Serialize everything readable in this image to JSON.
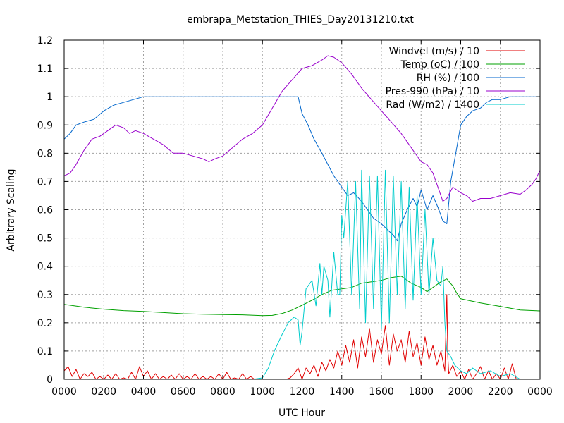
{
  "chart_data": {
    "type": "line",
    "title": "embrapa_Metstation_THIES_Day20131210.txt",
    "xlabel": "UTC Hour",
    "ylabel": "Arbitrary Scaling",
    "xlim": [
      0,
      24
    ],
    "ylim": [
      0,
      1.2
    ],
    "grid": true,
    "legend_position": "top-right",
    "xticks": [
      {
        "value": 0,
        "label": "0000"
      },
      {
        "value": 2,
        "label": "0200"
      },
      {
        "value": 4,
        "label": "0400"
      },
      {
        "value": 6,
        "label": "0600"
      },
      {
        "value": 8,
        "label": "0800"
      },
      {
        "value": 10,
        "label": "1000"
      },
      {
        "value": 12,
        "label": "1200"
      },
      {
        "value": 14,
        "label": "1400"
      },
      {
        "value": 16,
        "label": "1600"
      },
      {
        "value": 18,
        "label": "1800"
      },
      {
        "value": 20,
        "label": "2000"
      },
      {
        "value": 22,
        "label": "2200"
      },
      {
        "value": 24,
        "label": "0000"
      }
    ],
    "yticks": [
      {
        "value": 0,
        "label": "0"
      },
      {
        "value": 0.1,
        "label": "0.1"
      },
      {
        "value": 0.2,
        "label": "0.2"
      },
      {
        "value": 0.3,
        "label": "0.3"
      },
      {
        "value": 0.4,
        "label": "0.4"
      },
      {
        "value": 0.5,
        "label": "0.5"
      },
      {
        "value": 0.6,
        "label": "0.6"
      },
      {
        "value": 0.7,
        "label": "0.7"
      },
      {
        "value": 0.8,
        "label": "0.8"
      },
      {
        "value": 0.9,
        "label": "0.9"
      },
      {
        "value": 1.0,
        "label": "1"
      },
      {
        "value": 1.1,
        "label": "1.1"
      },
      {
        "value": 1.2,
        "label": "1.2"
      }
    ],
    "series": [
      {
        "name": "Windvel (m/s) / 10",
        "color": "#e00000",
        "x": [
          0.0,
          0.2,
          0.4,
          0.6,
          0.8,
          1.0,
          1.2,
          1.4,
          1.6,
          1.8,
          2.0,
          2.2,
          2.4,
          2.6,
          2.8,
          3.0,
          3.2,
          3.4,
          3.6,
          3.8,
          4.0,
          4.2,
          4.4,
          4.6,
          4.8,
          5.0,
          5.2,
          5.4,
          5.6,
          5.8,
          6.0,
          6.2,
          6.4,
          6.6,
          6.8,
          7.0,
          7.2,
          7.4,
          7.6,
          7.8,
          8.0,
          8.2,
          8.4,
          8.6,
          8.8,
          9.0,
          9.2,
          9.4,
          9.6,
          9.8,
          10.0,
          10.2,
          10.4,
          10.6,
          10.8,
          11.0,
          11.2,
          11.4,
          11.6,
          11.8,
          12.0,
          12.2,
          12.4,
          12.6,
          12.8,
          13.0,
          13.2,
          13.4,
          13.6,
          13.8,
          14.0,
          14.2,
          14.4,
          14.6,
          14.8,
          15.0,
          15.2,
          15.4,
          15.6,
          15.8,
          16.0,
          16.2,
          16.4,
          16.6,
          16.8,
          17.0,
          17.2,
          17.4,
          17.6,
          17.8,
          18.0,
          18.2,
          18.4,
          18.6,
          18.8,
          19.0,
          19.2,
          19.3,
          19.35,
          19.4,
          19.6,
          19.8,
          20.0,
          20.2,
          20.4,
          20.6,
          20.8,
          21.0,
          21.2,
          21.4,
          21.6,
          21.8,
          22.0,
          22.2,
          22.4,
          22.6,
          22.8,
          23.0,
          23.2,
          23.4,
          23.6,
          23.8,
          24.0
        ],
        "y": [
          0.03,
          0.045,
          0.01,
          0.035,
          0.0,
          0.02,
          0.01,
          0.025,
          0.0,
          0.01,
          0.0,
          0.015,
          0.0,
          0.02,
          0.0,
          0.005,
          0.0,
          0.025,
          0.0,
          0.045,
          0.01,
          0.03,
          0.0,
          0.02,
          0.0,
          0.01,
          0.0,
          0.015,
          0.0,
          0.02,
          0.0,
          0.01,
          0.0,
          0.02,
          0.0,
          0.01,
          0.0,
          0.01,
          0.0,
          0.02,
          0.0,
          0.025,
          0.0,
          0.005,
          0.0,
          0.02,
          0.0,
          0.01,
          0.0,
          0.0,
          0.0,
          0.0,
          0.0,
          0.0,
          0.0,
          0.0,
          0.0,
          0.005,
          0.02,
          0.04,
          0.0,
          0.04,
          0.02,
          0.05,
          0.01,
          0.06,
          0.03,
          0.07,
          0.04,
          0.1,
          0.05,
          0.12,
          0.06,
          0.14,
          0.04,
          0.15,
          0.08,
          0.18,
          0.06,
          0.14,
          0.09,
          0.19,
          0.05,
          0.16,
          0.1,
          0.14,
          0.06,
          0.17,
          0.08,
          0.13,
          0.05,
          0.15,
          0.07,
          0.12,
          0.05,
          0.1,
          0.03,
          0.3,
          0.08,
          0.02,
          0.05,
          0.01,
          0.03,
          0.0,
          0.035,
          0.0,
          0.02,
          0.045,
          0.0,
          0.03,
          0.0,
          0.02,
          0.0,
          0.04,
          0.0,
          0.055,
          0.0,
          0.0,
          0.0,
          0.0,
          0.0,
          0.0,
          0.0
        ]
      },
      {
        "name": "Temp (oC) / 100",
        "color": "#00a000",
        "x": [
          0,
          1,
          2,
          3,
          4,
          5,
          6,
          7,
          8,
          9,
          10,
          10.5,
          11,
          11.5,
          12,
          12.5,
          13,
          13.5,
          14,
          14.5,
          15,
          15.5,
          16,
          16.5,
          17,
          17.5,
          18,
          18.3,
          18.6,
          19,
          19.3,
          19.6,
          19.8,
          20,
          21,
          22,
          23,
          24
        ],
        "y": [
          0.265,
          0.255,
          0.248,
          0.243,
          0.24,
          0.236,
          0.232,
          0.23,
          0.229,
          0.228,
          0.225,
          0.226,
          0.233,
          0.245,
          0.262,
          0.28,
          0.3,
          0.315,
          0.32,
          0.325,
          0.34,
          0.345,
          0.35,
          0.36,
          0.365,
          0.34,
          0.325,
          0.31,
          0.325,
          0.345,
          0.355,
          0.33,
          0.305,
          0.285,
          0.27,
          0.258,
          0.245,
          0.242
        ]
      },
      {
        "name": "RH (%) / 100",
        "color": "#0066cc",
        "x": [
          0,
          0.3,
          0.6,
          1.0,
          1.5,
          2.0,
          2.5,
          3.0,
          3.5,
          4.0,
          4.5,
          5,
          6,
          7,
          8,
          9,
          10,
          10.5,
          11,
          11.5,
          11.8,
          12.0,
          12.3,
          12.6,
          13.0,
          13.3,
          13.6,
          14.0,
          14.3,
          14.6,
          15.0,
          15.3,
          15.6,
          16.0,
          16.3,
          16.6,
          16.8,
          17.0,
          17.3,
          17.6,
          17.8,
          18.0,
          18.3,
          18.6,
          18.9,
          19.1,
          19.3,
          19.5,
          19.8,
          20.0,
          20.3,
          20.6,
          21.0,
          21.3,
          21.6,
          22.0,
          22.5,
          23.0,
          23.5,
          24.0
        ],
        "y": [
          0.85,
          0.87,
          0.9,
          0.91,
          0.92,
          0.95,
          0.97,
          0.98,
          0.99,
          1.0,
          1.0,
          1.0,
          1.0,
          1.0,
          1.0,
          1.0,
          1.0,
          1.0,
          1.0,
          1.0,
          1.0,
          0.94,
          0.9,
          0.85,
          0.8,
          0.76,
          0.72,
          0.68,
          0.65,
          0.66,
          0.63,
          0.6,
          0.57,
          0.55,
          0.53,
          0.51,
          0.49,
          0.55,
          0.6,
          0.64,
          0.61,
          0.67,
          0.6,
          0.65,
          0.6,
          0.56,
          0.55,
          0.7,
          0.82,
          0.9,
          0.93,
          0.95,
          0.96,
          0.98,
          0.99,
          0.99,
          1.0,
          1.0,
          1.0,
          1.0
        ]
      },
      {
        "name": "Pres-990 (hPa) / 10",
        "color": "#9900cc",
        "x": [
          0,
          0.3,
          0.6,
          1.0,
          1.4,
          1.8,
          2.2,
          2.6,
          3.0,
          3.3,
          3.6,
          4.0,
          4.5,
          5.0,
          5.5,
          6.0,
          6.5,
          7.0,
          7.3,
          7.6,
          8.0,
          8.5,
          9.0,
          9.5,
          10.0,
          10.5,
          11.0,
          11.5,
          12.0,
          12.5,
          13.0,
          13.3,
          13.6,
          14.0,
          14.5,
          15.0,
          15.5,
          16.0,
          16.5,
          17.0,
          17.5,
          18.0,
          18.3,
          18.6,
          18.9,
          19.1,
          19.3,
          19.6,
          20.0,
          20.3,
          20.6,
          21.0,
          21.5,
          22.0,
          22.5,
          23.0,
          23.3,
          23.6,
          23.8,
          24.0
        ],
        "y": [
          0.72,
          0.73,
          0.76,
          0.81,
          0.85,
          0.86,
          0.88,
          0.9,
          0.89,
          0.87,
          0.88,
          0.87,
          0.85,
          0.83,
          0.8,
          0.8,
          0.79,
          0.78,
          0.77,
          0.78,
          0.79,
          0.82,
          0.85,
          0.87,
          0.9,
          0.96,
          1.02,
          1.06,
          1.1,
          1.11,
          1.13,
          1.145,
          1.14,
          1.12,
          1.08,
          1.03,
          0.99,
          0.95,
          0.91,
          0.87,
          0.82,
          0.77,
          0.76,
          0.73,
          0.67,
          0.63,
          0.64,
          0.68,
          0.66,
          0.65,
          0.63,
          0.64,
          0.64,
          0.65,
          0.66,
          0.655,
          0.67,
          0.69,
          0.71,
          0.74
        ]
      },
      {
        "name": "Rad (W/m2) / 1400",
        "color": "#00cccc",
        "x": [
          0,
          2,
          4,
          6,
          8,
          9.5,
          10.0,
          10.3,
          10.6,
          11.0,
          11.3,
          11.6,
          11.8,
          11.9,
          12.0,
          12.2,
          12.5,
          12.7,
          12.9,
          13.0,
          13.1,
          13.3,
          13.4,
          13.6,
          13.8,
          13.9,
          14.0,
          14.1,
          14.3,
          14.5,
          14.7,
          14.9,
          15.0,
          15.2,
          15.4,
          15.6,
          15.8,
          16.0,
          16.2,
          16.4,
          16.6,
          16.8,
          17.0,
          17.2,
          17.4,
          17.6,
          17.8,
          18.0,
          18.2,
          18.4,
          18.6,
          18.8,
          19.0,
          19.1,
          19.2,
          19.3,
          19.5,
          19.7,
          20.0,
          20.3,
          20.6,
          21.0,
          21.5,
          22.0,
          22.5,
          23.0,
          24.0
        ],
        "y": [
          0.0,
          0.0,
          0.0,
          0.0,
          0.0,
          0.0,
          0.005,
          0.04,
          0.1,
          0.16,
          0.2,
          0.22,
          0.21,
          0.12,
          0.17,
          0.32,
          0.35,
          0.26,
          0.41,
          0.3,
          0.4,
          0.35,
          0.22,
          0.45,
          0.3,
          0.3,
          0.58,
          0.5,
          0.7,
          0.3,
          0.7,
          0.25,
          0.74,
          0.2,
          0.72,
          0.25,
          0.72,
          0.18,
          0.74,
          0.2,
          0.72,
          0.3,
          0.7,
          0.25,
          0.68,
          0.28,
          0.65,
          0.3,
          0.6,
          0.3,
          0.5,
          0.35,
          0.33,
          0.4,
          0.2,
          0.1,
          0.08,
          0.05,
          0.03,
          0.02,
          0.04,
          0.02,
          0.03,
          0.01,
          0.02,
          0.0,
          0.0
        ]
      }
    ]
  }
}
